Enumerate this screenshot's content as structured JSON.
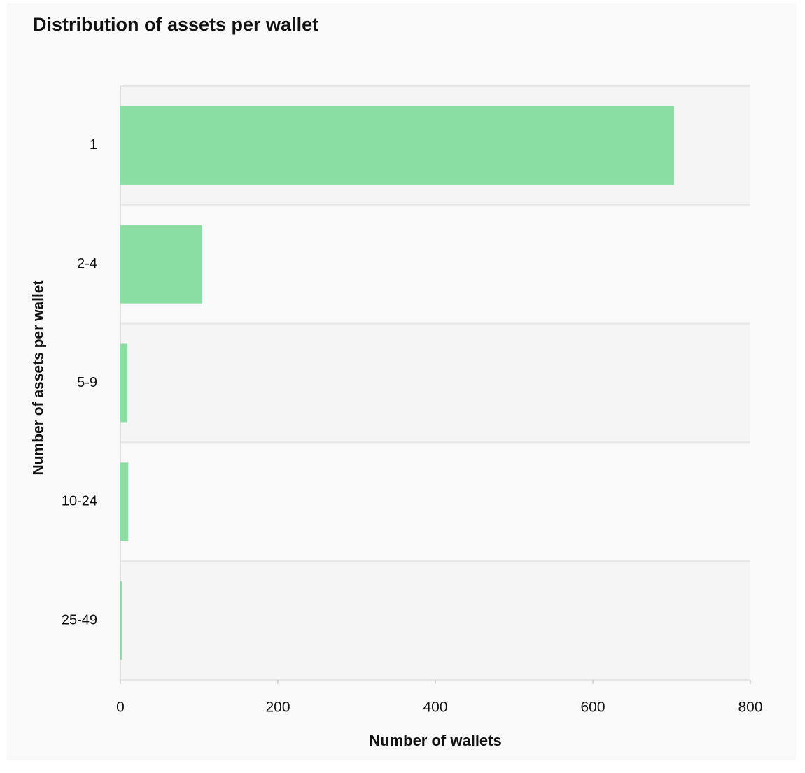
{
  "chart_data": {
    "type": "bar",
    "orientation": "horizontal",
    "title": "Distribution of assets per wallet",
    "x_label": "Number of wallets",
    "y_label": "Number of assets per wallet",
    "categories": [
      "1",
      "2-4",
      "5-9",
      "10-24",
      "25-49"
    ],
    "values": [
      703,
      104,
      9,
      10,
      2
    ],
    "color": "#8ade a4",
    "xlim": [
      0,
      800
    ],
    "xticks": [
      0,
      200,
      400,
      600,
      800
    ]
  }
}
